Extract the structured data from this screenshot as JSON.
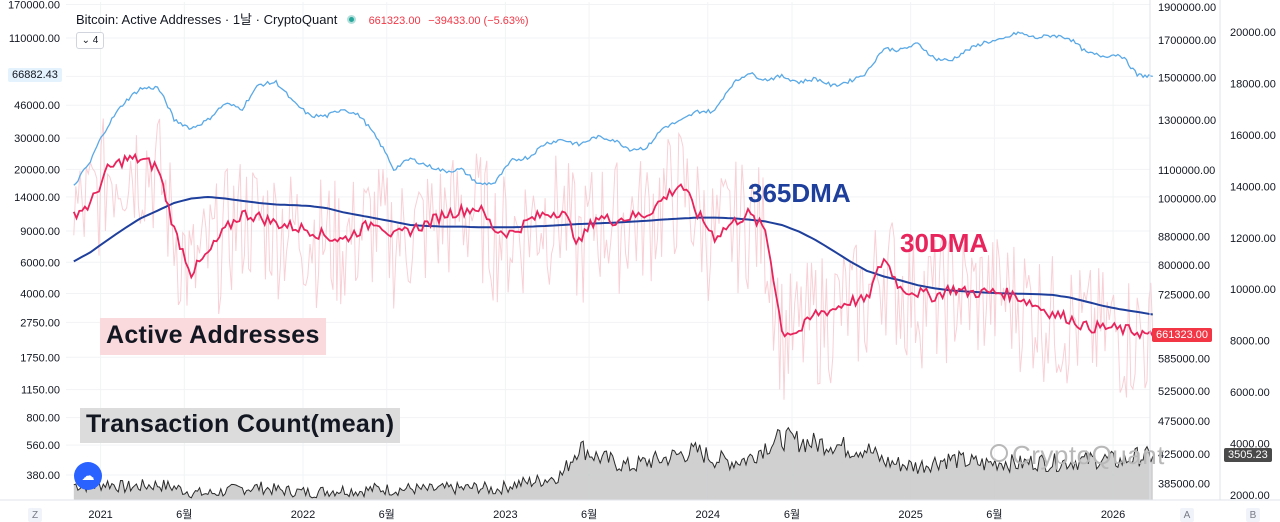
{
  "header": {
    "symbol": "Bitcoin: Active Addresses",
    "interval": "1날",
    "source": "CryptoQuant",
    "last": "661323.00",
    "change": "−39433.00 (−5.63%)"
  },
  "indicator_count": "4",
  "annotations": {
    "active_addresses": "Active Addresses",
    "tx_count": "Transaction Count(mean)",
    "dma365": "365DMA",
    "dma30": "30DMA"
  },
  "watermark": "CryptoQuant",
  "corners": {
    "left": "Z",
    "auto": "A",
    "log": "B"
  },
  "price_tags": {
    "btc": "66882.43",
    "active": "661323.00",
    "tx": "3505.23"
  },
  "colors": {
    "btc": "#5aa9e6",
    "active_raw": "#f6c4cc",
    "dma30": "#e8245c",
    "dma365": "#1e3f9c",
    "tx_line": "#2a2a2a",
    "tx_fill": "#c8c8c8",
    "tag_red": "#f23645",
    "tag_dark": "#4a4a4a"
  },
  "chart_data": {
    "type": "line",
    "x_ticks": [
      "2021",
      "6월",
      "2022",
      "6월",
      "2023",
      "6월",
      "2024",
      "6월",
      "2025",
      "6월",
      "2026"
    ],
    "axes": {
      "left_btc_price": {
        "scale": "log",
        "ticks": [
          "170000.00",
          "110000.00",
          "66882.43",
          "46000.00",
          "30000.00",
          "20000.00",
          "14000.00",
          "9000.00",
          "6000.00",
          "4000.00",
          "2750.00",
          "1750.00",
          "1150.00",
          "800.00",
          "560.00",
          "380.00"
        ]
      },
      "right_active_addresses": {
        "scale": "log",
        "ticks": [
          "1900000.00",
          "1700000.00",
          "1500000.00",
          "1300000.00",
          "1100000.00",
          "1000000.00",
          "880000.00",
          "800000.00",
          "725000.00",
          "661323.00",
          "585000.00",
          "525000.00",
          "475000.00",
          "425000.00",
          "385000.00"
        ]
      },
      "right_tx_count": {
        "ticks": [
          "20000.00",
          "18000.00",
          "16000.00",
          "14000.00",
          "12000.00",
          "10000.00",
          "8000.00",
          "6000.00",
          "4000.00",
          "3505.23",
          "2000.00"
        ]
      }
    },
    "series": [
      {
        "name": "Bitcoin price",
        "axis": "left_btc_price",
        "points": [
          [
            "2020-11",
            16000
          ],
          [
            "2020-12",
            22000
          ],
          [
            "2021-01",
            35000
          ],
          [
            "2021-02",
            48000
          ],
          [
            "2021-03",
            57000
          ],
          [
            "2021-04",
            58000
          ],
          [
            "2021-05",
            38000
          ],
          [
            "2021-06",
            34000
          ],
          [
            "2021-07",
            38000
          ],
          [
            "2021-08",
            47000
          ],
          [
            "2021-09",
            44000
          ],
          [
            "2021-10",
            60000
          ],
          [
            "2021-11",
            62000
          ],
          [
            "2021-12",
            48000
          ],
          [
            "2022-01",
            40000
          ],
          [
            "2022-02",
            40000
          ],
          [
            "2022-03",
            44000
          ],
          [
            "2022-04",
            40000
          ],
          [
            "2022-05",
            30000
          ],
          [
            "2022-06",
            20000
          ],
          [
            "2022-07",
            23000
          ],
          [
            "2022-08",
            21000
          ],
          [
            "2022-09",
            19500
          ],
          [
            "2022-10",
            20000
          ],
          [
            "2022-11",
            16500
          ],
          [
            "2022-12",
            16800
          ],
          [
            "2023-01",
            22500
          ],
          [
            "2023-02",
            23500
          ],
          [
            "2023-03",
            28000
          ],
          [
            "2023-04",
            29500
          ],
          [
            "2023-05",
            27500
          ],
          [
            "2023-06",
            30500
          ],
          [
            "2023-07",
            29500
          ],
          [
            "2023-08",
            26000
          ],
          [
            "2023-09",
            26500
          ],
          [
            "2023-10",
            34500
          ],
          [
            "2023-11",
            37500
          ],
          [
            "2023-12",
            42500
          ],
          [
            "2024-01",
            42500
          ],
          [
            "2024-02",
            60000
          ],
          [
            "2024-03",
            70000
          ],
          [
            "2024-04",
            64000
          ],
          [
            "2024-05",
            67000
          ],
          [
            "2024-06",
            62000
          ],
          [
            "2024-07",
            65000
          ],
          [
            "2024-08",
            59000
          ],
          [
            "2024-09",
            63000
          ],
          [
            "2024-10",
            70000
          ],
          [
            "2024-11",
            96000
          ],
          [
            "2024-12",
            94000
          ],
          [
            "2025-01",
            102000
          ],
          [
            "2025-02",
            84000
          ],
          [
            "2025-03",
            82000
          ],
          [
            "2025-04",
            94000
          ],
          [
            "2025-05",
            104000
          ],
          [
            "2025-06",
            107000
          ],
          [
            "2025-07",
            118000
          ],
          [
            "2025-08",
            110000
          ],
          [
            "2025-09",
            114000
          ],
          [
            "2025-10",
            110000
          ],
          [
            "2025-11",
            91000
          ],
          [
            "2025-12",
            87000
          ],
          [
            "2026-01",
            89000
          ],
          [
            "2026-02",
            68000
          ],
          [
            "2026-03",
            66882
          ]
        ]
      },
      {
        "name": "30DMA",
        "axis": "right_active_addresses",
        "points": [
          [
            "2020-11",
            950000
          ],
          [
            "2020-12",
            980000
          ],
          [
            "2021-01",
            1100000
          ],
          [
            "2021-02",
            1140000
          ],
          [
            "2021-03",
            1140000
          ],
          [
            "2021-04",
            1110000
          ],
          [
            "2021-05",
            900000
          ],
          [
            "2021-06",
            780000
          ],
          [
            "2021-07",
            830000
          ],
          [
            "2021-08",
            900000
          ],
          [
            "2021-09",
            950000
          ],
          [
            "2021-10",
            940000
          ],
          [
            "2021-11",
            920000
          ],
          [
            "2021-12",
            910000
          ],
          [
            "2022-01",
            900000
          ],
          [
            "2022-02",
            880000
          ],
          [
            "2022-03",
            870000
          ],
          [
            "2022-04",
            900000
          ],
          [
            "2022-05",
            930000
          ],
          [
            "2022-06",
            880000
          ],
          [
            "2022-07",
            900000
          ],
          [
            "2022-08",
            920000
          ],
          [
            "2022-09",
            950000
          ],
          [
            "2022-10",
            960000
          ],
          [
            "2022-11",
            970000
          ],
          [
            "2022-12",
            900000
          ],
          [
            "2023-01",
            890000
          ],
          [
            "2023-02",
            930000
          ],
          [
            "2023-03",
            950000
          ],
          [
            "2023-04",
            960000
          ],
          [
            "2023-05",
            860000
          ],
          [
            "2023-06",
            940000
          ],
          [
            "2023-07",
            930000
          ],
          [
            "2023-08",
            940000
          ],
          [
            "2023-09",
            950000
          ],
          [
            "2023-10",
            1000000
          ],
          [
            "2023-11",
            1050000
          ],
          [
            "2023-12",
            950000
          ],
          [
            "2024-01",
            880000
          ],
          [
            "2024-02",
            920000
          ],
          [
            "2024-03",
            950000
          ],
          [
            "2024-04",
            900000
          ],
          [
            "2024-05",
            640000
          ],
          [
            "2024-06",
            640000
          ],
          [
            "2024-07",
            680000
          ],
          [
            "2024-08",
            690000
          ],
          [
            "2024-09",
            710000
          ],
          [
            "2024-10",
            710000
          ],
          [
            "2024-11",
            820000
          ],
          [
            "2024-12",
            740000
          ],
          [
            "2025-01",
            730000
          ],
          [
            "2025-02",
            720000
          ],
          [
            "2025-03",
            740000
          ],
          [
            "2025-04",
            730000
          ],
          [
            "2025-05",
            730000
          ],
          [
            "2025-06",
            730000
          ],
          [
            "2025-07",
            720000
          ],
          [
            "2025-08",
            700000
          ],
          [
            "2025-09",
            680000
          ],
          [
            "2025-10",
            670000
          ],
          [
            "2025-11",
            650000
          ],
          [
            "2025-12",
            650000
          ],
          [
            "2026-01",
            645000
          ],
          [
            "2026-02",
            640000
          ],
          [
            "2026-03",
            630000
          ]
        ]
      },
      {
        "name": "365DMA",
        "axis": "right_active_addresses",
        "points": [
          [
            "2020-11",
            810000
          ],
          [
            "2020-12",
            835000
          ],
          [
            "2021-01",
            870000
          ],
          [
            "2021-02",
            905000
          ],
          [
            "2021-03",
            935000
          ],
          [
            "2021-04",
            960000
          ],
          [
            "2021-05",
            985000
          ],
          [
            "2021-06",
            1000000
          ],
          [
            "2021-07",
            1005000
          ],
          [
            "2021-08",
            1000000
          ],
          [
            "2021-09",
            992000
          ],
          [
            "2021-10",
            985000
          ],
          [
            "2021-11",
            980000
          ],
          [
            "2021-12",
            978000
          ],
          [
            "2022-01",
            975000
          ],
          [
            "2022-02",
            968000
          ],
          [
            "2022-03",
            955000
          ],
          [
            "2022-04",
            945000
          ],
          [
            "2022-05",
            935000
          ],
          [
            "2022-06",
            925000
          ],
          [
            "2022-07",
            915000
          ],
          [
            "2022-08",
            912000
          ],
          [
            "2022-09",
            910000
          ],
          [
            "2022-10",
            910000
          ],
          [
            "2022-11",
            908000
          ],
          [
            "2022-12",
            908000
          ],
          [
            "2023-01",
            908000
          ],
          [
            "2023-02",
            910000
          ],
          [
            "2023-03",
            912000
          ],
          [
            "2023-04",
            915000
          ],
          [
            "2023-05",
            918000
          ],
          [
            "2023-06",
            920000
          ],
          [
            "2023-07",
            922000
          ],
          [
            "2023-08",
            925000
          ],
          [
            "2023-09",
            928000
          ],
          [
            "2023-10",
            932000
          ],
          [
            "2023-11",
            935000
          ],
          [
            "2023-12",
            938000
          ],
          [
            "2024-01",
            938000
          ],
          [
            "2024-02",
            936000
          ],
          [
            "2024-03",
            932000
          ],
          [
            "2024-04",
            926000
          ],
          [
            "2024-05",
            915000
          ],
          [
            "2024-06",
            895000
          ],
          [
            "2024-07",
            870000
          ],
          [
            "2024-08",
            840000
          ],
          [
            "2024-09",
            810000
          ],
          [
            "2024-10",
            785000
          ],
          [
            "2024-11",
            770000
          ],
          [
            "2024-12",
            760000
          ],
          [
            "2025-01",
            748000
          ],
          [
            "2025-02",
            740000
          ],
          [
            "2025-03",
            735000
          ],
          [
            "2025-04",
            732000
          ],
          [
            "2025-05",
            730000
          ],
          [
            "2025-06",
            728000
          ],
          [
            "2025-07",
            727000
          ],
          [
            "2025-08",
            726000
          ],
          [
            "2025-09",
            724000
          ],
          [
            "2025-10",
            718000
          ],
          [
            "2025-11",
            708000
          ],
          [
            "2025-12",
            698000
          ],
          [
            "2026-01",
            690000
          ],
          [
            "2026-02",
            684000
          ],
          [
            "2026-03",
            678000
          ]
        ]
      },
      {
        "name": "Transaction Count(mean)",
        "axis": "right_tx_count",
        "points": [
          [
            "2020-11",
            2400
          ],
          [
            "2020-12",
            2350
          ],
          [
            "2021-01",
            2450
          ],
          [
            "2021-02",
            2300
          ],
          [
            "2021-03",
            2350
          ],
          [
            "2021-04",
            2400
          ],
          [
            "2021-05",
            2300
          ],
          [
            "2021-06",
            2100
          ],
          [
            "2021-07",
            2050
          ],
          [
            "2021-08",
            2150
          ],
          [
            "2021-09",
            2250
          ],
          [
            "2021-10",
            2300
          ],
          [
            "2021-11",
            2200
          ],
          [
            "2021-12",
            2150
          ],
          [
            "2022-01",
            2100
          ],
          [
            "2022-02",
            2150
          ],
          [
            "2022-03",
            2200
          ],
          [
            "2022-04",
            2150
          ],
          [
            "2022-05",
            2250
          ],
          [
            "2022-06",
            2200
          ],
          [
            "2022-07",
            2250
          ],
          [
            "2022-08",
            2200
          ],
          [
            "2022-09",
            2250
          ],
          [
            "2022-10",
            2250
          ],
          [
            "2022-11",
            2300
          ],
          [
            "2022-12",
            2200
          ],
          [
            "2023-01",
            2400
          ],
          [
            "2023-02",
            2500
          ],
          [
            "2023-03",
            2600
          ],
          [
            "2023-04",
            2800
          ],
          [
            "2023-05",
            3900
          ],
          [
            "2023-06",
            3500
          ],
          [
            "2023-07",
            3300
          ],
          [
            "2023-08",
            3100
          ],
          [
            "2023-09",
            3300
          ],
          [
            "2023-10",
            3400
          ],
          [
            "2023-11",
            3600
          ],
          [
            "2023-12",
            3700
          ],
          [
            "2024-01",
            3400
          ],
          [
            "2024-02",
            3300
          ],
          [
            "2024-03",
            3400
          ],
          [
            "2024-04",
            3900
          ],
          [
            "2024-05",
            4200
          ],
          [
            "2024-06",
            4100
          ],
          [
            "2024-07",
            4000
          ],
          [
            "2024-08",
            4000
          ],
          [
            "2024-09",
            3800
          ],
          [
            "2024-10",
            3800
          ],
          [
            "2024-11",
            3300
          ],
          [
            "2024-12",
            3200
          ],
          [
            "2025-01",
            3100
          ],
          [
            "2025-02",
            3300
          ],
          [
            "2025-03",
            3400
          ],
          [
            "2025-04",
            3300
          ],
          [
            "2025-05",
            3200
          ],
          [
            "2025-06",
            3300
          ],
          [
            "2025-07",
            3200
          ],
          [
            "2025-08",
            3300
          ],
          [
            "2025-09",
            3250
          ],
          [
            "2025-10",
            3300
          ],
          [
            "2025-11",
            3350
          ],
          [
            "2025-12",
            3400
          ],
          [
            "2026-01",
            3300
          ],
          [
            "2026-02",
            3500
          ],
          [
            "2026-03",
            3505
          ]
        ]
      }
    ]
  }
}
